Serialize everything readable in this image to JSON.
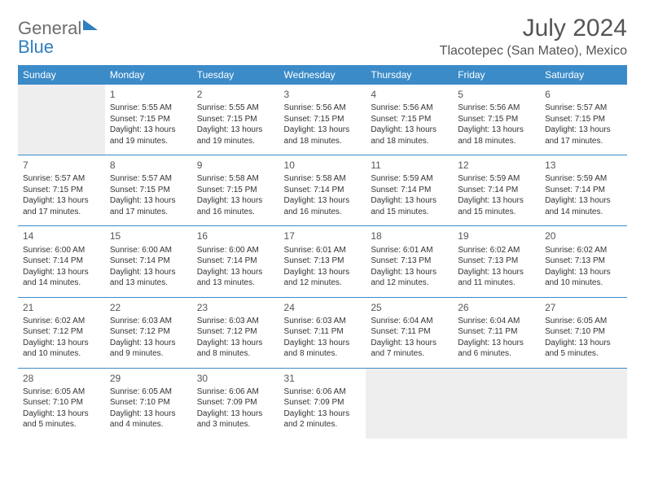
{
  "brand": {
    "name_gray": "General",
    "name_blue": "Blue"
  },
  "header": {
    "month_title": "July 2024",
    "location": "Tlacotepec (San Mateo), Mexico"
  },
  "colors": {
    "header_bg": "#3b8bc8",
    "header_text": "#ffffff",
    "page_bg": "#ffffff",
    "text": "#333333",
    "muted": "#555555",
    "logo_gray": "#6e6e6e",
    "logo_blue": "#2f7fc1",
    "row_border": "#3b8bc8",
    "empty_bg": "#eeeeee"
  },
  "typography": {
    "title_fontsize_pt": 22,
    "location_fontsize_pt": 12,
    "weekday_fontsize_pt": 9,
    "daynum_fontsize_pt": 9,
    "body_fontsize_pt": 7.5,
    "font_family": "Arial"
  },
  "calendar": {
    "type": "table",
    "weekdays": [
      "Sunday",
      "Monday",
      "Tuesday",
      "Wednesday",
      "Thursday",
      "Friday",
      "Saturday"
    ],
    "leading_blanks": 1,
    "trailing_blanks": 3,
    "days": [
      {
        "n": "1",
        "sunrise": "Sunrise: 5:55 AM",
        "sunset": "Sunset: 7:15 PM",
        "d1": "Daylight: 13 hours",
        "d2": "and 19 minutes."
      },
      {
        "n": "2",
        "sunrise": "Sunrise: 5:55 AM",
        "sunset": "Sunset: 7:15 PM",
        "d1": "Daylight: 13 hours",
        "d2": "and 19 minutes."
      },
      {
        "n": "3",
        "sunrise": "Sunrise: 5:56 AM",
        "sunset": "Sunset: 7:15 PM",
        "d1": "Daylight: 13 hours",
        "d2": "and 18 minutes."
      },
      {
        "n": "4",
        "sunrise": "Sunrise: 5:56 AM",
        "sunset": "Sunset: 7:15 PM",
        "d1": "Daylight: 13 hours",
        "d2": "and 18 minutes."
      },
      {
        "n": "5",
        "sunrise": "Sunrise: 5:56 AM",
        "sunset": "Sunset: 7:15 PM",
        "d1": "Daylight: 13 hours",
        "d2": "and 18 minutes."
      },
      {
        "n": "6",
        "sunrise": "Sunrise: 5:57 AM",
        "sunset": "Sunset: 7:15 PM",
        "d1": "Daylight: 13 hours",
        "d2": "and 17 minutes."
      },
      {
        "n": "7",
        "sunrise": "Sunrise: 5:57 AM",
        "sunset": "Sunset: 7:15 PM",
        "d1": "Daylight: 13 hours",
        "d2": "and 17 minutes."
      },
      {
        "n": "8",
        "sunrise": "Sunrise: 5:57 AM",
        "sunset": "Sunset: 7:15 PM",
        "d1": "Daylight: 13 hours",
        "d2": "and 17 minutes."
      },
      {
        "n": "9",
        "sunrise": "Sunrise: 5:58 AM",
        "sunset": "Sunset: 7:15 PM",
        "d1": "Daylight: 13 hours",
        "d2": "and 16 minutes."
      },
      {
        "n": "10",
        "sunrise": "Sunrise: 5:58 AM",
        "sunset": "Sunset: 7:14 PM",
        "d1": "Daylight: 13 hours",
        "d2": "and 16 minutes."
      },
      {
        "n": "11",
        "sunrise": "Sunrise: 5:59 AM",
        "sunset": "Sunset: 7:14 PM",
        "d1": "Daylight: 13 hours",
        "d2": "and 15 minutes."
      },
      {
        "n": "12",
        "sunrise": "Sunrise: 5:59 AM",
        "sunset": "Sunset: 7:14 PM",
        "d1": "Daylight: 13 hours",
        "d2": "and 15 minutes."
      },
      {
        "n": "13",
        "sunrise": "Sunrise: 5:59 AM",
        "sunset": "Sunset: 7:14 PM",
        "d1": "Daylight: 13 hours",
        "d2": "and 14 minutes."
      },
      {
        "n": "14",
        "sunrise": "Sunrise: 6:00 AM",
        "sunset": "Sunset: 7:14 PM",
        "d1": "Daylight: 13 hours",
        "d2": "and 14 minutes."
      },
      {
        "n": "15",
        "sunrise": "Sunrise: 6:00 AM",
        "sunset": "Sunset: 7:14 PM",
        "d1": "Daylight: 13 hours",
        "d2": "and 13 minutes."
      },
      {
        "n": "16",
        "sunrise": "Sunrise: 6:00 AM",
        "sunset": "Sunset: 7:14 PM",
        "d1": "Daylight: 13 hours",
        "d2": "and 13 minutes."
      },
      {
        "n": "17",
        "sunrise": "Sunrise: 6:01 AM",
        "sunset": "Sunset: 7:13 PM",
        "d1": "Daylight: 13 hours",
        "d2": "and 12 minutes."
      },
      {
        "n": "18",
        "sunrise": "Sunrise: 6:01 AM",
        "sunset": "Sunset: 7:13 PM",
        "d1": "Daylight: 13 hours",
        "d2": "and 12 minutes."
      },
      {
        "n": "19",
        "sunrise": "Sunrise: 6:02 AM",
        "sunset": "Sunset: 7:13 PM",
        "d1": "Daylight: 13 hours",
        "d2": "and 11 minutes."
      },
      {
        "n": "20",
        "sunrise": "Sunrise: 6:02 AM",
        "sunset": "Sunset: 7:13 PM",
        "d1": "Daylight: 13 hours",
        "d2": "and 10 minutes."
      },
      {
        "n": "21",
        "sunrise": "Sunrise: 6:02 AM",
        "sunset": "Sunset: 7:12 PM",
        "d1": "Daylight: 13 hours",
        "d2": "and 10 minutes."
      },
      {
        "n": "22",
        "sunrise": "Sunrise: 6:03 AM",
        "sunset": "Sunset: 7:12 PM",
        "d1": "Daylight: 13 hours",
        "d2": "and 9 minutes."
      },
      {
        "n": "23",
        "sunrise": "Sunrise: 6:03 AM",
        "sunset": "Sunset: 7:12 PM",
        "d1": "Daylight: 13 hours",
        "d2": "and 8 minutes."
      },
      {
        "n": "24",
        "sunrise": "Sunrise: 6:03 AM",
        "sunset": "Sunset: 7:11 PM",
        "d1": "Daylight: 13 hours",
        "d2": "and 8 minutes."
      },
      {
        "n": "25",
        "sunrise": "Sunrise: 6:04 AM",
        "sunset": "Sunset: 7:11 PM",
        "d1": "Daylight: 13 hours",
        "d2": "and 7 minutes."
      },
      {
        "n": "26",
        "sunrise": "Sunrise: 6:04 AM",
        "sunset": "Sunset: 7:11 PM",
        "d1": "Daylight: 13 hours",
        "d2": "and 6 minutes."
      },
      {
        "n": "27",
        "sunrise": "Sunrise: 6:05 AM",
        "sunset": "Sunset: 7:10 PM",
        "d1": "Daylight: 13 hours",
        "d2": "and 5 minutes."
      },
      {
        "n": "28",
        "sunrise": "Sunrise: 6:05 AM",
        "sunset": "Sunset: 7:10 PM",
        "d1": "Daylight: 13 hours",
        "d2": "and 5 minutes."
      },
      {
        "n": "29",
        "sunrise": "Sunrise: 6:05 AM",
        "sunset": "Sunset: 7:10 PM",
        "d1": "Daylight: 13 hours",
        "d2": "and 4 minutes."
      },
      {
        "n": "30",
        "sunrise": "Sunrise: 6:06 AM",
        "sunset": "Sunset: 7:09 PM",
        "d1": "Daylight: 13 hours",
        "d2": "and 3 minutes."
      },
      {
        "n": "31",
        "sunrise": "Sunrise: 6:06 AM",
        "sunset": "Sunset: 7:09 PM",
        "d1": "Daylight: 13 hours",
        "d2": "and 2 minutes."
      }
    ]
  }
}
